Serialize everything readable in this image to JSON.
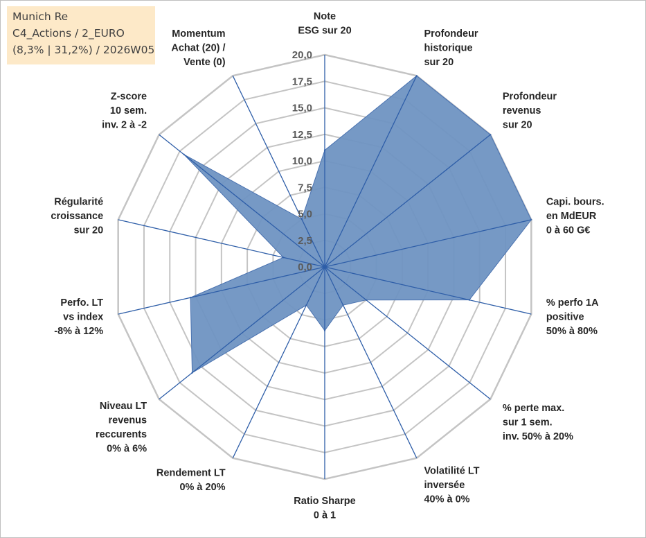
{
  "header": {
    "line1": "Munich Re",
    "line2": "C4_Actions / 2_EURO",
    "line3": "(8,3% | 31,2%) / 2026W05"
  },
  "colors": {
    "fill": "#6f93c2",
    "stroke": "#4a72b0",
    "spoke": "#2e5ea8",
    "grid": "#c4c4c4",
    "legend_bg": "#fde9c8"
  },
  "chart_data": {
    "type": "radar",
    "title": "",
    "rmin": 0,
    "rmax": 20,
    "ticks": [
      "0,0",
      "2,5",
      "5,0",
      "7,5",
      "10,0",
      "12,5",
      "15,0",
      "17,5",
      "20,0"
    ],
    "axes": [
      {
        "label": [
          "Note",
          "ESG sur 20"
        ],
        "value": 11
      },
      {
        "label": [
          "Profondeur",
          "historique",
          "sur 20"
        ],
        "value": 20
      },
      {
        "label": [
          "Profondeur",
          "revenus",
          "sur 20"
        ],
        "value": 20
      },
      {
        "label": [
          "Capi. bours.",
          "en MdEUR",
          "0 à 60 G€"
        ],
        "value": 20
      },
      {
        "label": [
          "% perfo 1A",
          "positive",
          "50% à 80%"
        ],
        "value": 14
      },
      {
        "label": [
          "% perte max.",
          "sur 1 sem.",
          "inv. 50% à 20%"
        ],
        "value": 5
      },
      {
        "label": [
          "Volatilité LT",
          "inversée",
          "40% à 0%"
        ],
        "value": 4
      },
      {
        "label": [
          "Ratio Sharpe",
          "0 à 1"
        ],
        "value": 6
      },
      {
        "label": [
          "Rendement LT",
          "0% à 20%"
        ],
        "value": 4
      },
      {
        "label": [
          "Niveau LT",
          "revenus",
          "reccurents",
          "0% à 6%"
        ],
        "value": 16
      },
      {
        "label": [
          "Perfo. LT",
          "vs index",
          "-8% à 12%"
        ],
        "value": 13
      },
      {
        "label": [
          "Régularité",
          "croissance",
          "sur 20"
        ],
        "value": 4
      },
      {
        "label": [
          "Z-score",
          "10 sem.",
          "inv. 2 à -2"
        ],
        "value": 17
      },
      {
        "label": [
          "Momentum",
          "Achat (20) /",
          "Vente (0)"
        ],
        "value": 5
      }
    ]
  }
}
